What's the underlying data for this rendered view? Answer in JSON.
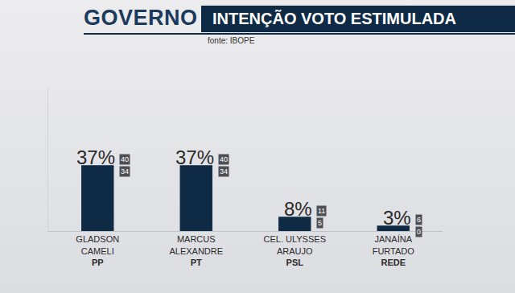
{
  "chart_data": {
    "type": "bar",
    "title": "GOVERNO",
    "subtitle": "INTENÇÃO VOTO ESTIMULADA",
    "source": "fonte: IBOPE",
    "categories": [
      "GLADSON\nCAMELI",
      "MARCUS\nALEXANDRE",
      "CEL. ULYSSES\nARAUJO",
      "JANAÍNA\nFURTADO"
    ],
    "parties": [
      "PP",
      "PT",
      "PSL",
      "REDE"
    ],
    "values": [
      37,
      37,
      8,
      3
    ],
    "value_labels": [
      "37%",
      "37%",
      "8%",
      "3%"
    ],
    "error_high": [
      40,
      40,
      11,
      6
    ],
    "error_low": [
      34,
      34,
      5,
      0
    ],
    "color": "#0f2a45",
    "ylim": [
      0,
      80
    ],
    "yticks": [
      0
    ],
    "grid": false,
    "data_labels": true,
    "tick_labels": "x"
  }
}
